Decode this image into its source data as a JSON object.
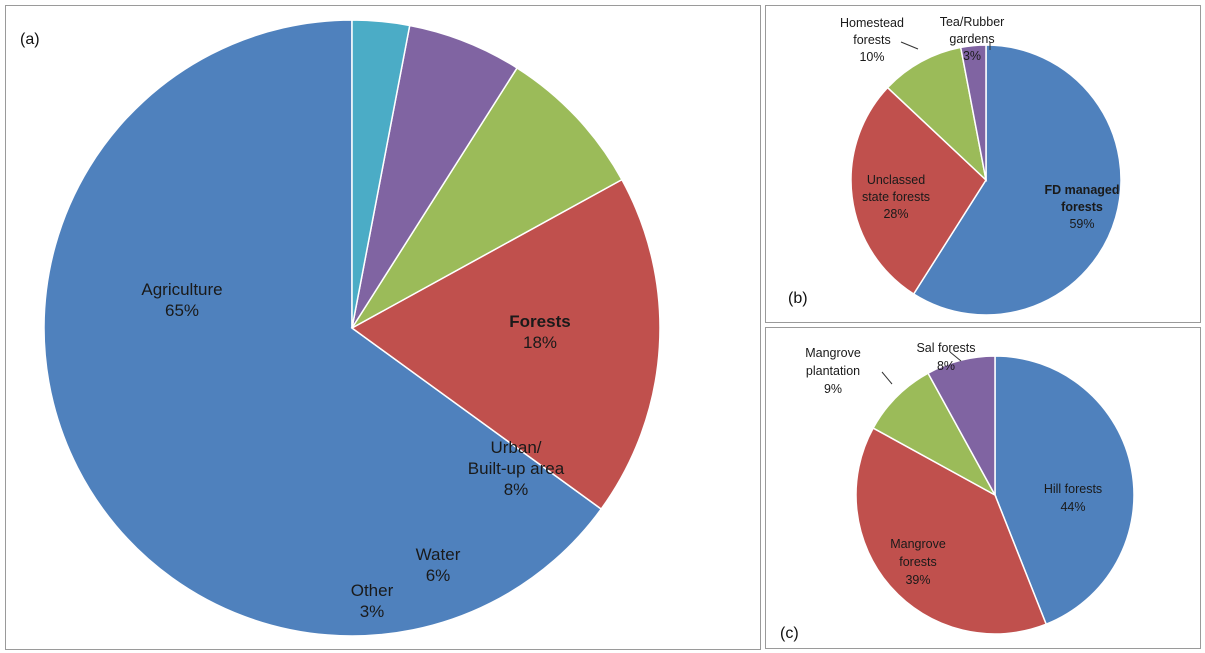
{
  "chart_data": [
    {
      "panel": "(a)",
      "type": "pie",
      "title": "",
      "slices": [
        {
          "label": [
            "Agriculture"
          ],
          "value": 65,
          "pct": "65%",
          "color": "#4f81bd",
          "bold": false
        },
        {
          "label": [
            "Forests"
          ],
          "value": 18,
          "pct": "18%",
          "color": "#c0504d",
          "bold": true
        },
        {
          "label": [
            "Urban/",
            "Built-up area"
          ],
          "value": 8,
          "pct": "8%",
          "color": "#9bbb59",
          "bold": false
        },
        {
          "label": [
            "Water"
          ],
          "value": 6,
          "pct": "6%",
          "color": "#8064a2",
          "bold": false
        },
        {
          "label": [
            "Other"
          ],
          "value": 3,
          "pct": "3%",
          "color": "#4bacc6",
          "bold": false
        }
      ]
    },
    {
      "panel": "(b)",
      "type": "pie",
      "title": "",
      "slices": [
        {
          "label": [
            "FD managed",
            "forests"
          ],
          "value": 59,
          "pct": "59%",
          "color": "#4f81bd",
          "bold": true
        },
        {
          "label": [
            "Unclassed",
            "state forests"
          ],
          "value": 28,
          "pct": "28%",
          "color": "#c0504d",
          "bold": false
        },
        {
          "label": [
            "Homestead",
            "forests"
          ],
          "value": 10,
          "pct": "10%",
          "color": "#9bbb59",
          "bold": false
        },
        {
          "label": [
            "Tea/Rubber",
            "gardens"
          ],
          "value": 3,
          "pct": "3%",
          "color": "#8064a2",
          "bold": false
        }
      ]
    },
    {
      "panel": "(c)",
      "type": "pie",
      "title": "",
      "slices": [
        {
          "label": [
            "Hill forests"
          ],
          "value": 44,
          "pct": "44%",
          "color": "#4f81bd",
          "bold": false
        },
        {
          "label": [
            "Mangrove",
            "forests"
          ],
          "value": 39,
          "pct": "39%",
          "color": "#c0504d",
          "bold": false
        },
        {
          "label": [
            "Mangrove",
            "plantation"
          ],
          "value": 9,
          "pct": "9%",
          "color": "#9bbb59",
          "bold": false
        },
        {
          "label": [
            "Sal forests"
          ],
          "value": 8,
          "pct": "8%",
          "color": "#8064a2",
          "bold": false
        }
      ]
    }
  ]
}
